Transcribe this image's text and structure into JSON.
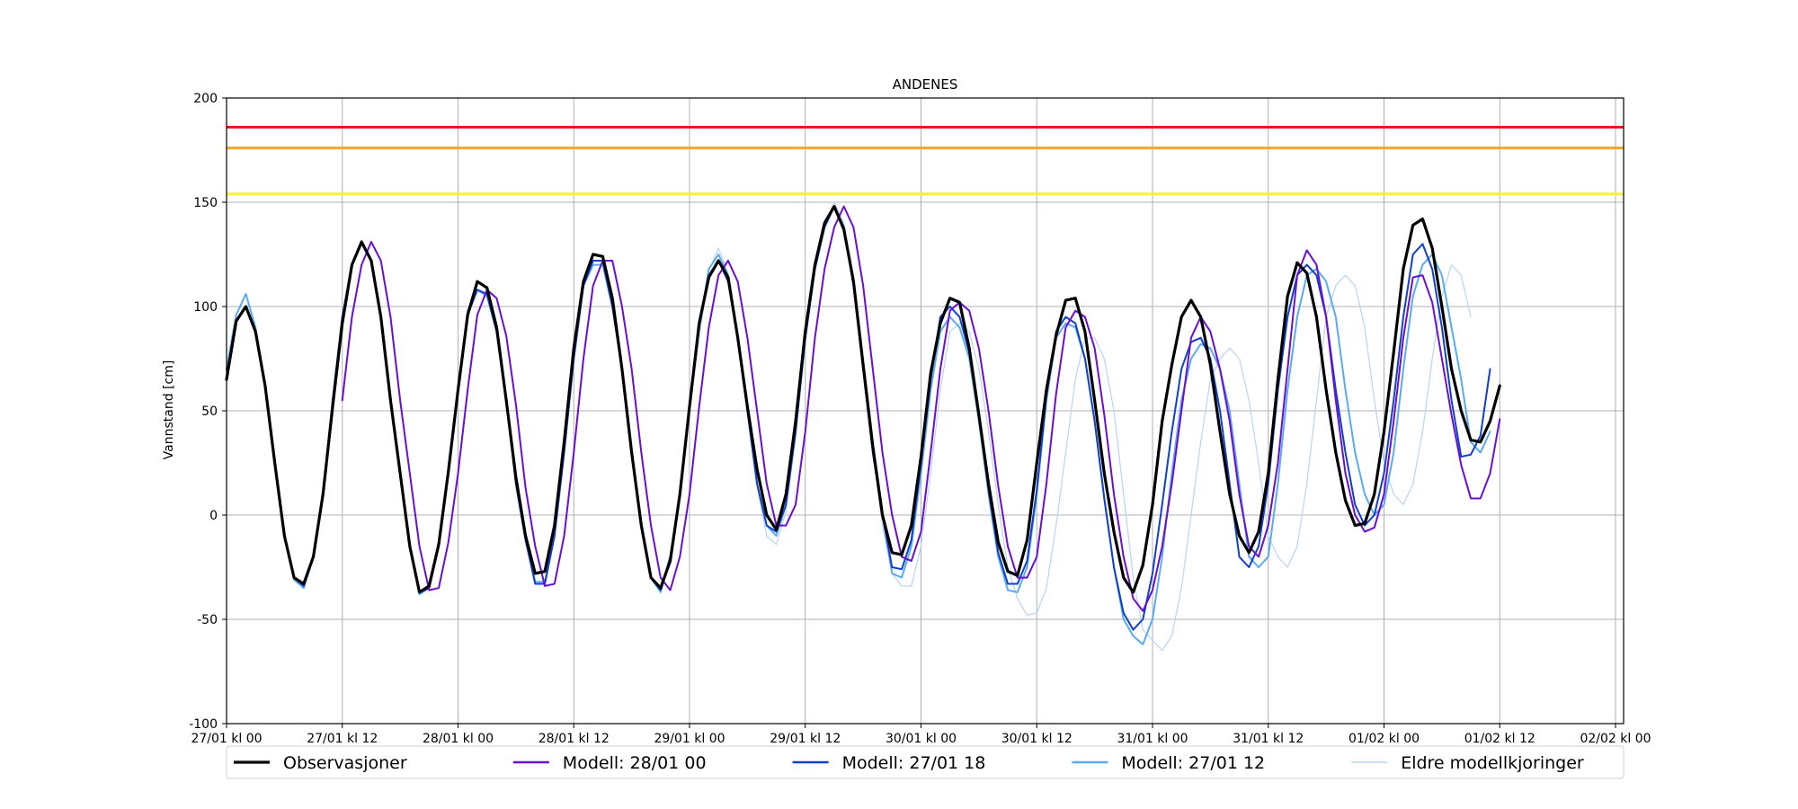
{
  "chart_data": {
    "type": "line",
    "title": "ANDENES",
    "ylabel": "Vannstand [cm]",
    "xlabel": "",
    "xlim": [
      0,
      144
    ],
    "ylim": [
      -100,
      200
    ],
    "y_ticks": [
      -100,
      -50,
      0,
      50,
      100,
      150,
      200
    ],
    "x_ticks": [
      {
        "x": 0,
        "label": "27/01 kl 00"
      },
      {
        "x": 12,
        "label": "27/01 kl 12"
      },
      {
        "x": 24,
        "label": "28/01 kl 00"
      },
      {
        "x": 36,
        "label": "28/01 kl 12"
      },
      {
        "x": 48,
        "label": "29/01 kl 00"
      },
      {
        "x": 60,
        "label": "29/01 kl 12"
      },
      {
        "x": 72,
        "label": "30/01 kl 00"
      },
      {
        "x": 84,
        "label": "30/01 kl 12"
      },
      {
        "x": 96,
        "label": "31/01 kl 00"
      },
      {
        "x": 108,
        "label": "31/01 kl 12"
      },
      {
        "x": 120,
        "label": "01/02 kl 00"
      },
      {
        "x": 132,
        "label": "01/02 kl 12"
      },
      {
        "x": 144,
        "label": "02/02 kl 00"
      }
    ],
    "grid": true,
    "legend_position": "bottom",
    "threshold_lines": [
      {
        "y": 186,
        "color": "#e41a1c"
      },
      {
        "y": 176,
        "color": "#f5a623"
      },
      {
        "y": 154,
        "color": "#f7f03c"
      }
    ],
    "series": [
      {
        "name": "Eldre modellkjoringer",
        "color": "#b8d3f5",
        "width": 1.2,
        "x_start": 48,
        "values": [
          50,
          85,
          117,
          128,
          116,
          85,
          52,
          14,
          -10,
          -14,
          2,
          38,
          82,
          118,
          140,
          150,
          140,
          110,
          70,
          30,
          -5,
          -28,
          -34,
          -34,
          -15,
          20,
          60,
          88,
          92,
          88,
          70,
          40,
          5,
          -25,
          -40,
          -48,
          -47,
          -35,
          -5,
          30,
          65,
          85,
          85,
          75,
          50,
          10,
          -30,
          -55,
          -60,
          -65,
          -58,
          -35,
          0,
          35,
          65,
          75,
          80,
          75,
          55,
          25,
          -10,
          -20,
          -25,
          -15,
          15,
          55,
          95,
          110,
          115,
          110,
          90,
          55,
          25,
          10,
          5,
          15,
          40,
          75,
          105,
          120,
          115,
          95
        ]
      },
      {
        "name": "Modell: 27/01 12",
        "color": "#5aabf0",
        "width": 2,
        "x_start": 0,
        "values": [
          70,
          96,
          106,
          90,
          62,
          25,
          -10,
          -31,
          -35,
          -20,
          10,
          55,
          95,
          120,
          130,
          122,
          95,
          55,
          20,
          -15,
          -38,
          -35,
          -15,
          20,
          60,
          98,
          108,
          105,
          88,
          55,
          15,
          -12,
          -32,
          -32,
          -10,
          30,
          75,
          110,
          120,
          120,
          100,
          70,
          30,
          -5,
          -30,
          -37,
          -20,
          10,
          52,
          90,
          118,
          125,
          115,
          85,
          50,
          15,
          -5,
          -10,
          5,
          40,
          85,
          118,
          138,
          148,
          138,
          110,
          70,
          30,
          0,
          -28,
          -30,
          -15,
          20,
          60,
          88,
          95,
          90,
          75,
          45,
          10,
          -20,
          -36,
          -37,
          -25,
          10,
          55,
          85,
          92,
          90,
          75,
          45,
          8,
          -25,
          -50,
          -58,
          -62,
          -50,
          -20,
          20,
          55,
          75,
          82,
          80,
          70,
          50,
          15,
          -20,
          -25,
          -20,
          15,
          60,
          95,
          115,
          118,
          112,
          95,
          60,
          30,
          10,
          0,
          5,
          30,
          70,
          105,
          120,
          125,
          115,
          90,
          65,
          35,
          30,
          40
        ]
      },
      {
        "name": "Modell: 27/01 18",
        "color": "#1040c8",
        "width": 2,
        "x_start": 6,
        "values": [
          -10,
          -30,
          -34,
          -20,
          10,
          55,
          95,
          120,
          131,
          122,
          95,
          55,
          20,
          -15,
          -37,
          -35,
          -15,
          20,
          60,
          96,
          108,
          106,
          88,
          55,
          15,
          -12,
          -33,
          -33,
          -10,
          30,
          75,
          110,
          122,
          122,
          100,
          70,
          30,
          -5,
          -30,
          -36,
          -20,
          10,
          52,
          90,
          115,
          122,
          112,
          85,
          50,
          15,
          -5,
          -8,
          5,
          40,
          85,
          118,
          138,
          148,
          138,
          110,
          70,
          30,
          0,
          -25,
          -26,
          -12,
          25,
          65,
          95,
          100,
          95,
          78,
          48,
          12,
          -18,
          -33,
          -33,
          -22,
          12,
          57,
          88,
          95,
          92,
          75,
          45,
          8,
          -25,
          -47,
          -55,
          -50,
          -28,
          5,
          40,
          70,
          83,
          85,
          75,
          50,
          15,
          -20,
          -25,
          -15,
          15,
          60,
          95,
          115,
          120,
          115,
          95,
          60,
          30,
          5,
          -5,
          0,
          20,
          55,
          95,
          125,
          130,
          118,
          90,
          55,
          28,
          29,
          38,
          70
        ]
      },
      {
        "name": "Modell: 28/01 00",
        "color": "#6a0fd0",
        "width": 2,
        "x_start": 12,
        "values": [
          55,
          95,
          120,
          131,
          122,
          95,
          55,
          20,
          -15,
          -36,
          -35,
          -13,
          20,
          60,
          96,
          108,
          104,
          86,
          53,
          13,
          -15,
          -34,
          -33,
          -10,
          30,
          75,
          110,
          122,
          122,
          100,
          70,
          30,
          -5,
          -30,
          -36,
          -20,
          10,
          52,
          90,
          115,
          122,
          112,
          85,
          50,
          15,
          -5,
          -5,
          5,
          40,
          85,
          118,
          138,
          148,
          138,
          110,
          70,
          30,
          0,
          -20,
          -22,
          -8,
          30,
          70,
          98,
          102,
          98,
          80,
          50,
          14,
          -15,
          -30,
          -30,
          -20,
          15,
          58,
          90,
          98,
          95,
          80,
          48,
          10,
          -20,
          -40,
          -46,
          -36,
          -15,
          15,
          50,
          85,
          95,
          88,
          70,
          45,
          10,
          -15,
          -20,
          -5,
          25,
          70,
          115,
          127,
          120,
          95,
          55,
          20,
          0,
          -8,
          -6,
          10,
          45,
          85,
          114,
          115,
          102,
          75,
          48,
          24,
          8,
          8,
          20,
          46
        ]
      },
      {
        "name": "Observasjoner",
        "color": "#000000",
        "width": 3.2,
        "x_start": 0,
        "values": [
          65,
          93,
          100,
          88,
          62,
          25,
          -10,
          -30,
          -33,
          -20,
          10,
          52,
          92,
          120,
          131,
          122,
          95,
          55,
          20,
          -15,
          -37,
          -34,
          -14,
          21,
          60,
          96,
          112,
          109,
          90,
          55,
          18,
          -10,
          -28,
          -27,
          -5,
          35,
          80,
          112,
          125,
          124,
          104,
          70,
          30,
          -5,
          -30,
          -35,
          -22,
          10,
          52,
          92,
          114,
          122,
          114,
          85,
          52,
          22,
          0,
          -7,
          10,
          45,
          88,
          120,
          140,
          148,
          137,
          112,
          72,
          33,
          0,
          -18,
          -19,
          -5,
          28,
          68,
          92,
          104,
          102,
          80,
          48,
          15,
          -13,
          -27,
          -29,
          -12,
          25,
          60,
          86,
          103,
          104,
          88,
          55,
          20,
          -8,
          -30,
          -37,
          -24,
          5,
          45,
          72,
          95,
          103,
          95,
          72,
          40,
          10,
          -10,
          -18,
          -8,
          20,
          65,
          105,
          121,
          116,
          95,
          60,
          30,
          7,
          -5,
          -4,
          10,
          40,
          78,
          118,
          139,
          142,
          128,
          100,
          70,
          50,
          36,
          35,
          45,
          62
        ]
      }
    ],
    "legend": [
      {
        "label": "Observasjoner",
        "color": "#000000",
        "width": 3.2
      },
      {
        "label": "Modell: 28/01 00",
        "color": "#6a0fd0",
        "width": 2.4
      },
      {
        "label": "Modell: 27/01 18",
        "color": "#1040c8",
        "width": 2.4
      },
      {
        "label": "Modell: 27/01 12",
        "color": "#5aabf0",
        "width": 2.4
      },
      {
        "label": "Eldre modellkjoringer",
        "color": "#b8d3f5",
        "width": 1.4
      }
    ]
  }
}
